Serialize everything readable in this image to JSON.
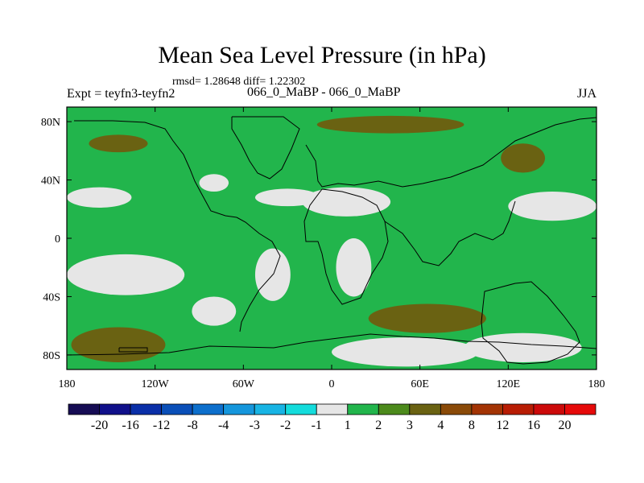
{
  "chart_data": {
    "type": "heatmap",
    "title": "Mean Sea Level Pressure (in hPa)",
    "stats_text": "rmsd= 1.28648 diff= 1.22302",
    "left_string": "Expt = teyfn3-teyfn2",
    "center_string": "066_0_MaBP - 066_0_MaBP",
    "right_string": "JJA",
    "x_axis": {
      "range": [
        -180,
        180
      ],
      "ticks": [
        {
          "value": -180,
          "label": "180"
        },
        {
          "value": -120,
          "label": "120W"
        },
        {
          "value": -60,
          "label": "60W"
        },
        {
          "value": 0,
          "label": "0"
        },
        {
          "value": 60,
          "label": "60E"
        },
        {
          "value": 120,
          "label": "120E"
        },
        {
          "value": 180,
          "label": "180"
        }
      ]
    },
    "y_axis": {
      "range": [
        -90,
        90
      ],
      "ticks": [
        {
          "value": 80,
          "label": "80N"
        },
        {
          "value": 40,
          "label": "40N"
        },
        {
          "value": 0,
          "label": "0"
        },
        {
          "value": -40,
          "label": "40S"
        },
        {
          "value": -80,
          "label": "80S"
        }
      ]
    },
    "colorbar": {
      "boundary_labels": [
        "-20",
        "-16",
        "-12",
        "-8",
        "-4",
        "-3",
        "-2",
        "-1",
        "1",
        "2",
        "3",
        "4",
        "8",
        "12",
        "16",
        "20"
      ],
      "colors": [
        "#160c54",
        "#10108a",
        "#0a2fa8",
        "#0a4fb8",
        "#0d6fcc",
        "#1596dc",
        "#18b4e4",
        "#14dcdc",
        "#e6e6e6",
        "#22b54c",
        "#4c8a1c",
        "#6a6212",
        "#8a4a08",
        "#a33404",
        "#b81d04",
        "#cc0a0a",
        "#e60a0a"
      ]
    },
    "background_bin": "1 to 2",
    "regions": [
      {
        "bin": "-1 to 1",
        "lon": -158,
        "lat": 28,
        "rlon": 22,
        "rlat": 7
      },
      {
        "bin": "-1 to 1",
        "lon": -30,
        "lat": 28,
        "rlon": 22,
        "rlat": 6
      },
      {
        "bin": "-1 to 1",
        "lon": 10,
        "lat": 25,
        "rlon": 30,
        "rlat": 10
      },
      {
        "bin": "-1 to 1",
        "lon": -80,
        "lat": 38,
        "rlon": 10,
        "rlat": 6
      },
      {
        "bin": "-1 to 1",
        "lon": 150,
        "lat": 22,
        "rlon": 30,
        "rlat": 10
      },
      {
        "bin": "-1 to 1",
        "lon": -140,
        "lat": -25,
        "rlon": 40,
        "rlat": 14
      },
      {
        "bin": "-1 to 1",
        "lon": 15,
        "lat": -20,
        "rlon": 12,
        "rlat": 20
      },
      {
        "bin": "-1 to 1",
        "lon": -80,
        "lat": -50,
        "rlon": 15,
        "rlat": 10
      },
      {
        "bin": "-1 to 1",
        "lon": -40,
        "lat": -25,
        "rlon": 12,
        "rlat": 18
      },
      {
        "bin": "-1 to 1",
        "lon": 50,
        "lat": -78,
        "rlon": 50,
        "rlat": 10
      },
      {
        "bin": "-1 to 1",
        "lon": 130,
        "lat": -75,
        "rlon": 40,
        "rlat": 10
      },
      {
        "bin": "3 to 4",
        "lon": -145,
        "lat": 65,
        "rlon": 20,
        "rlat": 6
      },
      {
        "bin": "3 to 4",
        "lon": 40,
        "lat": 78,
        "rlon": 50,
        "rlat": 6
      },
      {
        "bin": "3 to 4",
        "lon": 130,
        "lat": 55,
        "rlon": 15,
        "rlat": 10
      },
      {
        "bin": "3 to 4",
        "lon": 65,
        "lat": -55,
        "rlon": 40,
        "rlat": 10
      },
      {
        "bin": "3 to 4",
        "lon": -145,
        "lat": -73,
        "rlon": 32,
        "rlat": 12
      }
    ]
  }
}
